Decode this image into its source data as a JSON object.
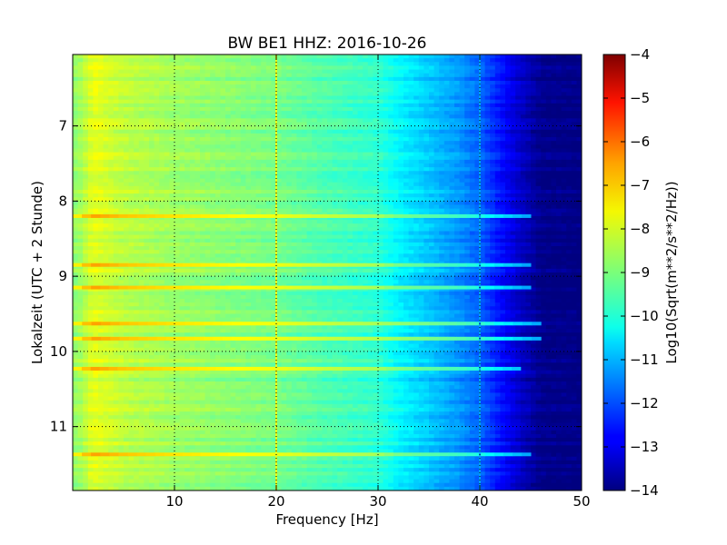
{
  "chart_data": {
    "type": "heatmap",
    "title": "BW BE1 HHZ: 2016-10-26",
    "xlabel": "Frequency [Hz]",
    "ylabel": "Lokalzeit (UTC + 2 Stunde)",
    "xlim": [
      0,
      50
    ],
    "ylim": [
      11.85,
      6.05
    ],
    "y_inverted": true,
    "x_ticks": [
      10,
      20,
      30,
      40,
      50
    ],
    "y_ticks": [
      7,
      8,
      9,
      10,
      11
    ],
    "grid": true,
    "colormap": "jet",
    "colorbar": {
      "label": "Log10(Sqrt(m**2/s**2/Hz))",
      "range": [
        -14,
        -4
      ],
      "ticks": [
        -14,
        -13,
        -12,
        -11,
        -10,
        -9,
        -8,
        -7,
        -6,
        -5,
        -4
      ]
    },
    "spectrum_profile": {
      "frequency_hz": [
        0.5,
        2,
        5,
        10,
        15,
        20,
        25,
        30,
        32,
        35,
        38,
        40,
        42,
        44,
        46,
        50
      ],
      "log10_amplitude": [
        -8.8,
        -8.0,
        -8.4,
        -8.7,
        -8.9,
        -9.1,
        -9.5,
        -9.8,
        -10.3,
        -10.8,
        -11.3,
        -11.8,
        -12.6,
        -13.3,
        -13.9,
        -14.0
      ]
    },
    "bright_bands": [
      {
        "time": 8.2,
        "log10_amplitude": -8.3,
        "max_frequency_hz": 45
      },
      {
        "time": 8.85,
        "log10_amplitude": -8.4,
        "max_frequency_hz": 45
      },
      {
        "time": 9.15,
        "log10_amplitude": -8.3,
        "max_frequency_hz": 45
      },
      {
        "time": 9.63,
        "log10_amplitude": -7.9,
        "max_frequency_hz": 46
      },
      {
        "time": 9.83,
        "log10_amplitude": -7.8,
        "max_frequency_hz": 46
      },
      {
        "time": 10.23,
        "log10_amplitude": -8.1,
        "max_frequency_hz": 44
      },
      {
        "time": 11.37,
        "log10_amplitude": -8.3,
        "max_frequency_hz": 45
      }
    ],
    "line_features": [
      {
        "frequency_hz": 20,
        "log10_amplitude": -8.0
      },
      {
        "frequency_hz": 40,
        "log10_amplitude": -11.2
      }
    ]
  }
}
